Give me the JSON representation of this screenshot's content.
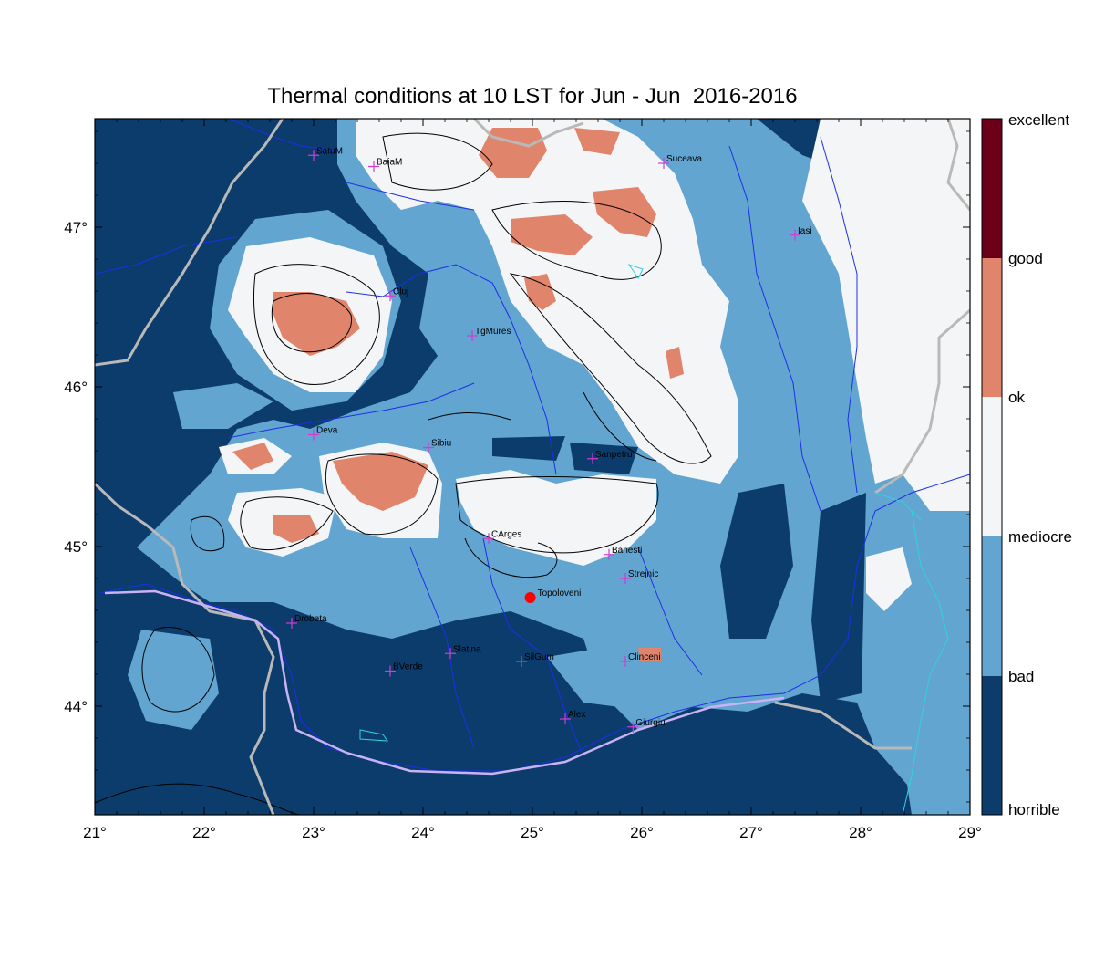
{
  "title": "Thermal conditions at 10 LST for Jun - Jun  2016-2016",
  "colors": {
    "horrible": "#0b3c6b",
    "bad": "#62a5d0",
    "mediocre": "#f4f5f6",
    "ok": "#e0846b",
    "good": "#6b0018",
    "excellent": "#6b0018",
    "rivers": "#1e2ee8",
    "border": "#b9b9b9",
    "coast": "#2fd3e0",
    "highlight_point": "#ff0000",
    "city_marker": "#d43ad4"
  },
  "x_ticks": [
    "21°",
    "22°",
    "23°",
    "24°",
    "25°",
    "26°",
    "27°",
    "28°",
    "29°"
  ],
  "y_ticks": [
    "44°",
    "45°",
    "46°",
    "47°"
  ],
  "colorbar_labels": [
    "excellent",
    "good",
    "ok",
    "mediocre",
    "bad",
    "horrible"
  ],
  "cities": [
    {
      "name": "SatuM",
      "lon": 23.0,
      "lat": 47.45
    },
    {
      "name": "BaiaM",
      "lon": 23.55,
      "lat": 47.38
    },
    {
      "name": "Suceava",
      "lon": 26.2,
      "lat": 47.4
    },
    {
      "name": "Iasi",
      "lon": 27.4,
      "lat": 46.95
    },
    {
      "name": "Cluj",
      "lon": 23.7,
      "lat": 46.57
    },
    {
      "name": "TgMures",
      "lon": 24.45,
      "lat": 46.32
    },
    {
      "name": "Deva",
      "lon": 23.0,
      "lat": 45.7
    },
    {
      "name": "Sibiu",
      "lon": 24.05,
      "lat": 45.62
    },
    {
      "name": "Sanpetru",
      "lon": 25.55,
      "lat": 45.55
    },
    {
      "name": "CArges",
      "lon": 24.6,
      "lat": 45.05
    },
    {
      "name": "Banesti",
      "lon": 25.7,
      "lat": 44.95
    },
    {
      "name": "Strejnic",
      "lon": 25.85,
      "lat": 44.8
    },
    {
      "name": "Drobeta",
      "lon": 22.8,
      "lat": 44.52
    },
    {
      "name": "Slatina",
      "lon": 24.25,
      "lat": 44.33
    },
    {
      "name": "SilGum",
      "lon": 24.9,
      "lat": 44.28
    },
    {
      "name": "Clinceni",
      "lon": 25.85,
      "lat": 44.28
    },
    {
      "name": "BVerde",
      "lon": 23.7,
      "lat": 44.22
    },
    {
      "name": "Alex",
      "lon": 25.3,
      "lat": 43.92
    },
    {
      "name": "Giurgiu",
      "lon": 25.92,
      "lat": 43.87
    }
  ],
  "highlight": {
    "name": "Topoloveni",
    "lon": 24.98,
    "lat": 44.68
  }
}
